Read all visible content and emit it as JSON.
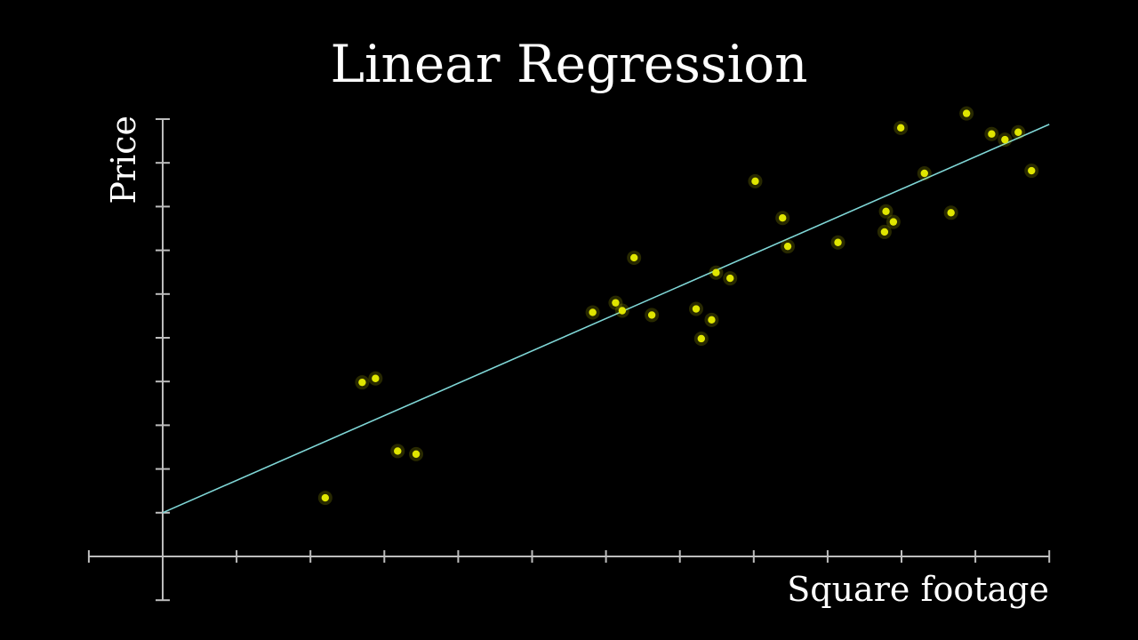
{
  "chart_data": {
    "type": "scatter",
    "title": "Linear Regression",
    "xlabel": "Square footage",
    "ylabel": "Price",
    "xlim": [
      -1,
      12
    ],
    "ylim": [
      -1,
      10
    ],
    "grid": false,
    "colors": {
      "background": "#000000",
      "points": "#e0e600",
      "fit_line": "#7fd6d6",
      "axes": "#bdbdbd",
      "text": "#ffffff"
    },
    "series": [
      {
        "x": [
          2.2,
          2.7,
          2.88,
          3.18,
          3.43,
          5.82,
          6.13,
          6.22,
          6.38,
          6.62,
          7.22,
          7.29,
          7.43,
          7.49,
          7.68,
          8.02,
          8.39,
          8.46,
          9.14,
          9.77,
          9.79,
          9.89,
          9.99,
          10.31,
          10.67,
          10.88,
          11.22,
          11.4,
          11.58,
          11.76
        ],
        "y": [
          1.34,
          3.98,
          4.07,
          2.41,
          2.34,
          5.58,
          5.8,
          5.62,
          6.83,
          5.52,
          5.66,
          4.98,
          5.41,
          6.49,
          6.36,
          8.58,
          7.74,
          7.09,
          7.18,
          7.42,
          7.89,
          7.65,
          9.8,
          8.76,
          7.86,
          10.13,
          9.66,
          9.53,
          9.7,
          8.82
        ]
      }
    ],
    "fit_line": {
      "slope": 0.74,
      "intercept": 1.0,
      "x_range": [
        0,
        12
      ]
    }
  }
}
